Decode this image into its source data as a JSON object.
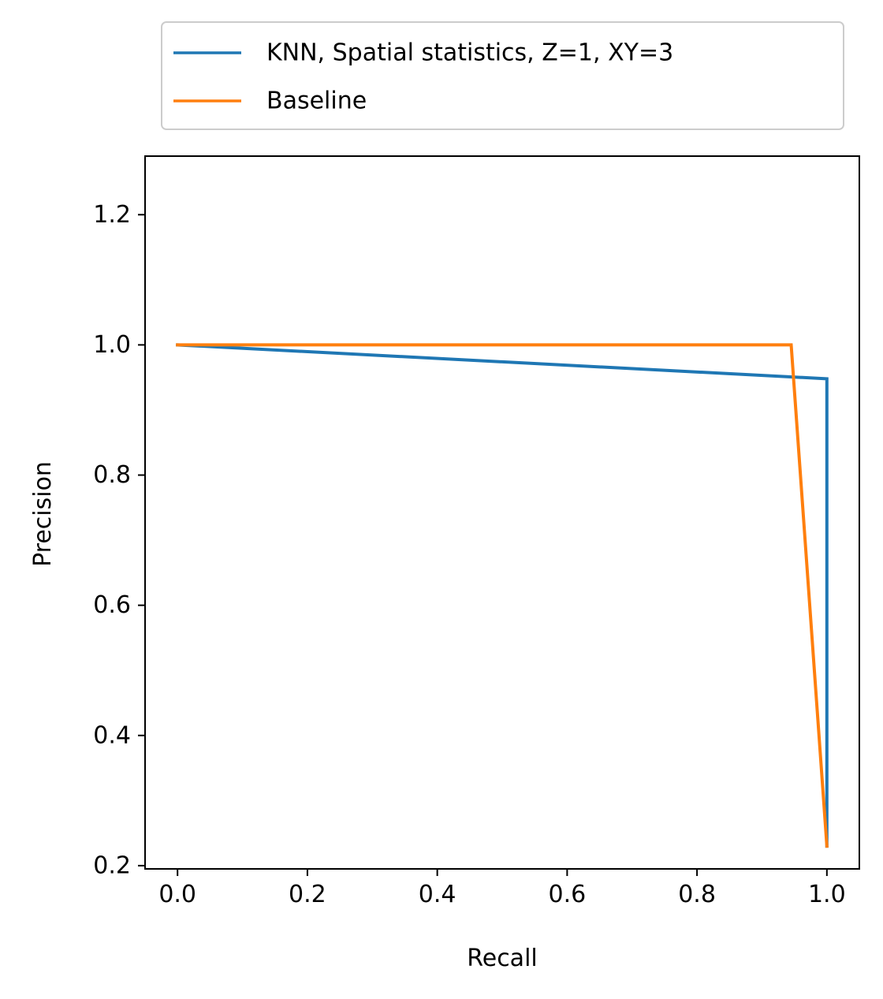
{
  "chart_data": {
    "type": "line",
    "title": "",
    "xlabel": "Recall",
    "ylabel": "Precision",
    "xlim": [
      -0.05,
      1.05
    ],
    "ylim": [
      0.195,
      1.29
    ],
    "xticks": [
      0.0,
      0.2,
      0.4,
      0.6,
      0.8,
      1.0
    ],
    "xtick_labels": [
      "0.0",
      "0.2",
      "0.4",
      "0.6",
      "0.8",
      "1.0"
    ],
    "yticks": [
      0.2,
      0.4,
      0.6,
      0.8,
      1.0,
      1.2
    ],
    "ytick_labels": [
      "0.2",
      "0.4",
      "0.6",
      "0.8",
      "1.0",
      "1.2"
    ],
    "grid": false,
    "legend_position": "above plot, top-left",
    "series": [
      {
        "name": "KNN, Spatial statistics, Z=1, XY=3",
        "color": "#1f77b4",
        "x": [
          0.0,
          1.0,
          1.0
        ],
        "y": [
          1.0,
          0.948,
          0.23
        ]
      },
      {
        "name": "Baseline",
        "color": "#ff7f0e",
        "x": [
          0.0,
          0.945,
          1.0
        ],
        "y": [
          1.0,
          1.0,
          0.23
        ]
      }
    ]
  }
}
